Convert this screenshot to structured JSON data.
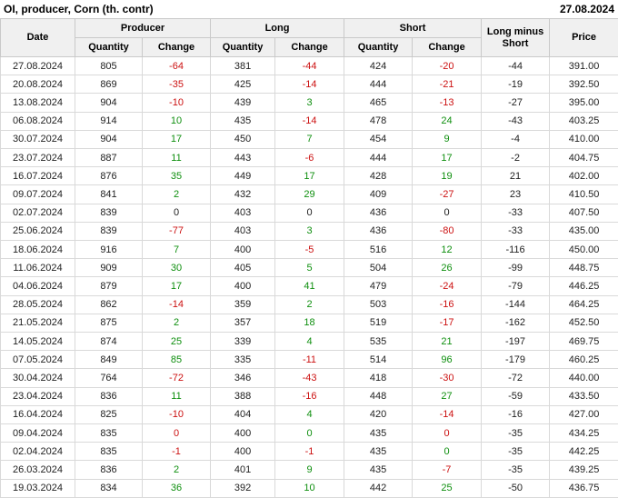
{
  "header": {
    "title": "OI, producer, Corn (th. contr)",
    "date": "27.08.2024"
  },
  "colors": {
    "red": "#cc1111",
    "green": "#0f8f0f",
    "dark": "#222222",
    "header_bg": "#f0f0f0",
    "border": "#d9d9d9"
  },
  "table_header": {
    "date": "Date",
    "producer": "Producer",
    "long": "Long",
    "short": "Short",
    "quantity": "Quantity",
    "change": "Change",
    "long_minus_short": "Long minus Short",
    "price": "Price"
  },
  "chart_data": {
    "type": "table",
    "title": "OI, producer, Corn (th. contr)",
    "as_of_date": "27.08.2024",
    "columns": [
      "Date",
      "Producer Quantity",
      "Producer Change",
      "Long Quantity",
      "Long Change",
      "Short Quantity",
      "Short Change",
      "Long minus Short",
      "Price"
    ],
    "rows": [
      [
        "27.08.2024",
        805,
        -64,
        381,
        -44,
        424,
        -20,
        -44,
        "391.00"
      ],
      [
        "20.08.2024",
        869,
        -35,
        425,
        -14,
        444,
        -21,
        -19,
        "392.50"
      ],
      [
        "13.08.2024",
        904,
        -10,
        439,
        3,
        465,
        -13,
        -27,
        "395.00"
      ],
      [
        "06.08.2024",
        914,
        10,
        435,
        -14,
        478,
        24,
        -43,
        "403.25"
      ],
      [
        "30.07.2024",
        904,
        17,
        450,
        7,
        454,
        9,
        -4,
        "410.00"
      ],
      [
        "23.07.2024",
        887,
        11,
        443,
        -6,
        444,
        17,
        -2,
        "404.75"
      ],
      [
        "16.07.2024",
        876,
        35,
        449,
        17,
        428,
        19,
        21,
        "402.00"
      ],
      [
        "09.07.2024",
        841,
        2,
        432,
        29,
        409,
        -27,
        23,
        "410.50"
      ],
      [
        "02.07.2024",
        839,
        0,
        403,
        0,
        436,
        0,
        -33,
        "407.50"
      ],
      [
        "25.06.2024",
        839,
        -77,
        403,
        3,
        436,
        -80,
        -33,
        "435.00"
      ],
      [
        "18.06.2024",
        916,
        7,
        400,
        -5,
        516,
        12,
        -116,
        "450.00"
      ],
      [
        "11.06.2024",
        909,
        30,
        405,
        5,
        504,
        26,
        -99,
        "448.75"
      ],
      [
        "04.06.2024",
        879,
        17,
        400,
        41,
        479,
        -24,
        -79,
        "446.25"
      ],
      [
        "28.05.2024",
        862,
        -14,
        359,
        2,
        503,
        -16,
        -144,
        "464.25"
      ],
      [
        "21.05.2024",
        875,
        2,
        357,
        18,
        519,
        -17,
        -162,
        "452.50"
      ],
      [
        "14.05.2024",
        874,
        25,
        339,
        4,
        535,
        21,
        -197,
        "469.75"
      ],
      [
        "07.05.2024",
        849,
        85,
        335,
        -11,
        514,
        96,
        -179,
        "460.25"
      ],
      [
        "30.04.2024",
        764,
        -72,
        346,
        -43,
        418,
        -30,
        -72,
        "440.00"
      ],
      [
        "23.04.2024",
        836,
        11,
        388,
        -16,
        448,
        27,
        -59,
        "433.50"
      ],
      [
        "16.04.2024",
        825,
        -10,
        404,
        4,
        420,
        -14,
        -16,
        "427.00"
      ],
      [
        "09.04.2024",
        835,
        0,
        400,
        0,
        435,
        0,
        -35,
        "434.25"
      ],
      [
        "02.04.2024",
        835,
        -1,
        400,
        -1,
        435,
        0,
        -35,
        "442.25"
      ],
      [
        "26.03.2024",
        836,
        2,
        401,
        9,
        435,
        -7,
        -35,
        "439.25"
      ],
      [
        "19.03.2024",
        834,
        36,
        392,
        10,
        442,
        25,
        -50,
        "436.75"
      ]
    ],
    "change_colors": [
      [
        "red",
        "red",
        "red"
      ],
      [
        "red",
        "red",
        "red"
      ],
      [
        "red",
        "green",
        "red"
      ],
      [
        "green",
        "red",
        "green"
      ],
      [
        "green",
        "green",
        "green"
      ],
      [
        "green",
        "red",
        "green"
      ],
      [
        "green",
        "green",
        "green"
      ],
      [
        "green",
        "green",
        "red"
      ],
      [
        "dark",
        "dark",
        "dark"
      ],
      [
        "red",
        "green",
        "red"
      ],
      [
        "green",
        "red",
        "green"
      ],
      [
        "green",
        "green",
        "green"
      ],
      [
        "green",
        "green",
        "red"
      ],
      [
        "red",
        "green",
        "red"
      ],
      [
        "green",
        "green",
        "red"
      ],
      [
        "green",
        "green",
        "green"
      ],
      [
        "green",
        "red",
        "green"
      ],
      [
        "red",
        "red",
        "red"
      ],
      [
        "green",
        "red",
        "green"
      ],
      [
        "red",
        "green",
        "red"
      ],
      [
        "red",
        "green",
        "red"
      ],
      [
        "red",
        "red",
        "green"
      ],
      [
        "green",
        "green",
        "red"
      ],
      [
        "green",
        "green",
        "green"
      ]
    ]
  }
}
